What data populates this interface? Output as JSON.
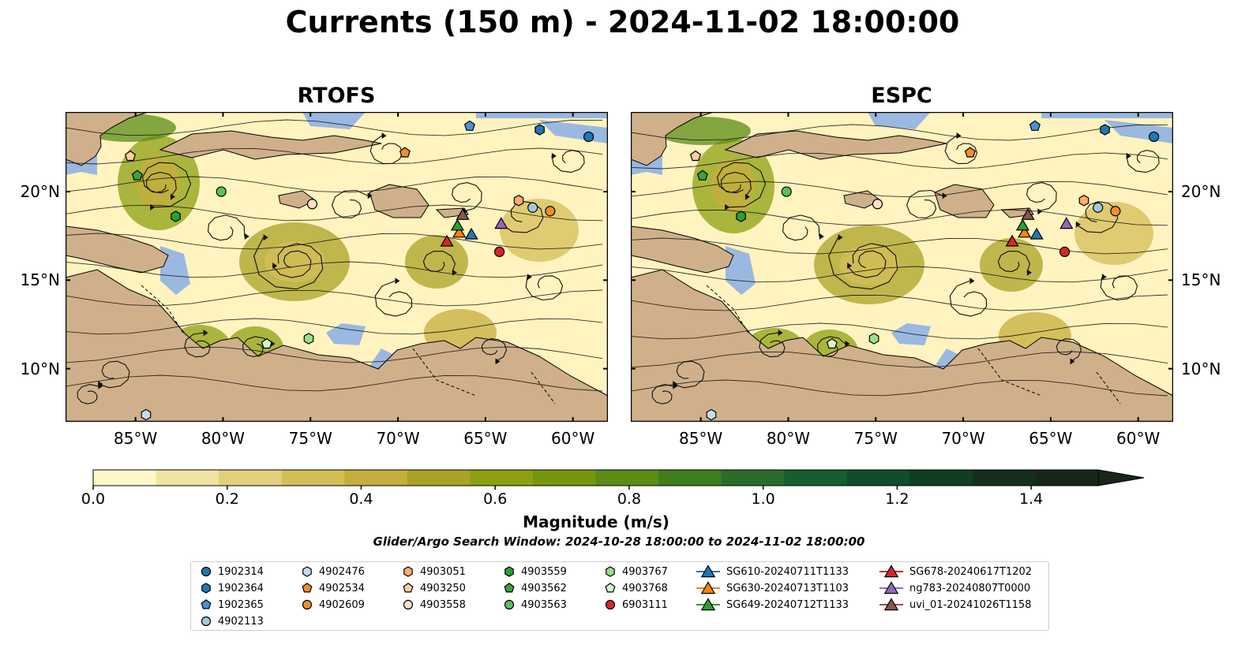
{
  "title": "Currents (150 m) - 2024-11-02 18:00:00",
  "panels": [
    {
      "name": "RTOFS"
    },
    {
      "name": "ESPC"
    }
  ],
  "lon_ticks": [
    "85°W",
    "80°W",
    "75°W",
    "70°W",
    "65°W",
    "60°W"
  ],
  "lat_ticks": [
    "20°N",
    "15°N",
    "10°N"
  ],
  "map_extent": {
    "lon": [
      -89,
      -58
    ],
    "lat": [
      7,
      24.5
    ]
  },
  "colorbar": {
    "label": "Magnitude (m/s)",
    "ticks": [
      "0.0",
      "0.2",
      "0.4",
      "0.6",
      "0.8",
      "1.0",
      "1.2",
      "1.4"
    ],
    "range": [
      0,
      1.5
    ],
    "extend": "max",
    "colors": [
      "#fff8c8",
      "#f0e4a0",
      "#e2d07a",
      "#d4be58",
      "#c6ae3c",
      "#aaa226",
      "#8ea012",
      "#76960e",
      "#5a8c16",
      "#3e7e1c",
      "#286e2a",
      "#155e2e",
      "#0e4e28",
      "#103e22",
      "#14301c",
      "#18261a"
    ]
  },
  "search_window": "Glider/Argo Search Window: 2024-10-28 18:00:00 to 2024-11-02 18:00:00",
  "colors": {
    "ocean": "#9ab8e0",
    "land": "#cfb08a"
  },
  "legend": [
    {
      "label": "1902314",
      "marker": "circle",
      "color": "#1f77b4"
    },
    {
      "label": "1902364",
      "marker": "hexagon",
      "color": "#1f77b4"
    },
    {
      "label": "1902365",
      "marker": "pentagon",
      "color": "#4a90d9"
    },
    {
      "label": "4902113",
      "marker": "circle",
      "color": "#9ecae1"
    },
    {
      "label": "4902476",
      "marker": "hexagon",
      "color": "#c6dbef"
    },
    {
      "label": "4902534",
      "marker": "pentagon",
      "color": "#f28e2b"
    },
    {
      "label": "4902609",
      "marker": "circle",
      "color": "#f28e2b"
    },
    {
      "label": "4903051",
      "marker": "hexagon",
      "color": "#fdae6b"
    },
    {
      "label": "4903250",
      "marker": "pentagon",
      "color": "#fdd0a2"
    },
    {
      "label": "4903558",
      "marker": "circle",
      "color": "#fde0c5"
    },
    {
      "label": "4903559",
      "marker": "hexagon",
      "color": "#2ca02c"
    },
    {
      "label": "4903562",
      "marker": "pentagon",
      "color": "#3aa33a"
    },
    {
      "label": "4903563",
      "marker": "circle",
      "color": "#5cc05c"
    },
    {
      "label": "4903767",
      "marker": "hexagon",
      "color": "#98df8a"
    },
    {
      "label": "4903768",
      "marker": "pentagon",
      "color": "#d8f5c8"
    },
    {
      "label": "6903111",
      "marker": "circle",
      "color": "#d62728"
    },
    {
      "label": "SG610-20240711T1133",
      "marker": "triangle",
      "color": "#1f77b4"
    },
    {
      "label": "SG630-20240713T1103",
      "marker": "triangle",
      "color": "#ff7f0e"
    },
    {
      "label": "SG649-20240712T1133",
      "marker": "triangle",
      "color": "#2ca02c"
    },
    {
      "label": "SG678-20240617T1202",
      "marker": "triangle",
      "color": "#d62728"
    },
    {
      "label": "ng783-20240807T0000",
      "marker": "triangle",
      "color": "#9467bd"
    },
    {
      "label": "uvi_01-20241026T1158",
      "marker": "triangle",
      "color": "#8c564b"
    }
  ],
  "platforms": [
    {
      "id": "1902314",
      "lon": -59.1,
      "lat": 23.1
    },
    {
      "id": "1902364",
      "lon": -61.9,
      "lat": 23.5
    },
    {
      "id": "1902365",
      "lon": -65.9,
      "lat": 23.7
    },
    {
      "id": "4902113",
      "lon": -62.3,
      "lat": 19.1
    },
    {
      "id": "4902476",
      "lon": -84.4,
      "lat": 7.4
    },
    {
      "id": "4902534",
      "lon": -69.6,
      "lat": 22.2
    },
    {
      "id": "4902609",
      "lon": -61.3,
      "lat": 18.9
    },
    {
      "id": "4903051",
      "lon": -63.1,
      "lat": 19.5
    },
    {
      "id": "4903250",
      "lon": -85.3,
      "lat": 22.0
    },
    {
      "id": "4903558",
      "lon": -74.9,
      "lat": 19.3
    },
    {
      "id": "4903559",
      "lon": -82.7,
      "lat": 18.6
    },
    {
      "id": "4903562",
      "lon": -84.9,
      "lat": 20.9
    },
    {
      "id": "4903563",
      "lon": -80.1,
      "lat": 20.0
    },
    {
      "id": "4903767",
      "lon": -75.1,
      "lat": 11.7
    },
    {
      "id": "4903768",
      "lon": -77.5,
      "lat": 11.4
    },
    {
      "id": "6903111",
      "lon": -64.2,
      "lat": 16.6
    },
    {
      "id": "SG610-20240711T1133",
      "lon": -65.8,
      "lat": 17.6
    },
    {
      "id": "SG630-20240713T1103",
      "lon": -66.5,
      "lat": 17.7
    },
    {
      "id": "SG649-20240712T1133",
      "lon": -66.6,
      "lat": 18.1
    },
    {
      "id": "SG678-20240617T1202",
      "lon": -67.2,
      "lat": 17.2
    },
    {
      "id": "ng783-20240807T0000",
      "lon": -64.1,
      "lat": 18.2
    },
    {
      "id": "uvi_01-20241026T1158",
      "lon": -66.3,
      "lat": 18.7
    }
  ]
}
